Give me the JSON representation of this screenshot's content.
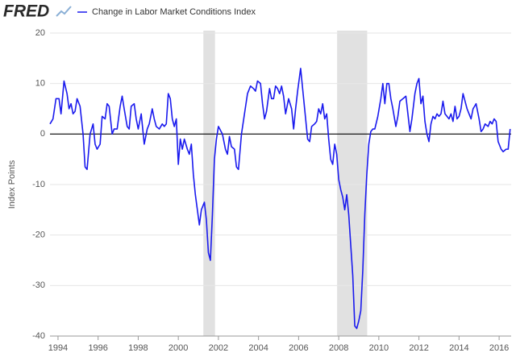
{
  "logo": "FRED",
  "chart_data": {
    "type": "line",
    "ylabel": "Index Points",
    "xlim": [
      1993.6,
      2016.6
    ],
    "xticks": [
      1994,
      1996,
      1998,
      2000,
      2002,
      2004,
      2006,
      2008,
      2010,
      2012,
      2014,
      2016
    ],
    "ylim": [
      -40,
      20
    ],
    "yticks": [
      -40,
      -30,
      -20,
      -10,
      0,
      10,
      20
    ],
    "grid": true,
    "zero_line": true,
    "shaded_regions": [
      [
        2001.25,
        2001.83
      ],
      [
        2007.92,
        2009.42
      ]
    ],
    "shade_color": "#e1e1e1",
    "series": [
      {
        "name": "Change in Labor Market Conditions Index",
        "color": "#1a1aee",
        "x": [
          1993.6,
          1993.75,
          1993.9,
          1994.05,
          1994.15,
          1994.3,
          1994.45,
          1994.55,
          1994.65,
          1994.75,
          1994.85,
          1994.95,
          1995.1,
          1995.25,
          1995.35,
          1995.45,
          1995.6,
          1995.75,
          1995.85,
          1995.95,
          1996.1,
          1996.2,
          1996.35,
          1996.45,
          1996.55,
          1996.7,
          1996.8,
          1996.95,
          1997.1,
          1997.2,
          1997.3,
          1997.45,
          1997.55,
          1997.65,
          1997.8,
          1997.9,
          1998.0,
          1998.15,
          1998.3,
          1998.45,
          1998.55,
          1998.7,
          1998.8,
          1998.9,
          1999.05,
          1999.2,
          1999.3,
          1999.4,
          1999.5,
          1999.6,
          1999.7,
          1999.8,
          1999.9,
          2000.0,
          2000.1,
          2000.2,
          2000.3,
          2000.45,
          2000.55,
          2000.65,
          2000.75,
          2000.85,
          2000.95,
          2001.05,
          2001.15,
          2001.3,
          2001.4,
          2001.5,
          2001.6,
          2001.7,
          2001.8,
          2001.9,
          2002.0,
          2002.2,
          2002.35,
          2002.45,
          2002.55,
          2002.65,
          2002.8,
          2002.9,
          2003.0,
          2003.15,
          2003.3,
          2003.45,
          2003.6,
          2003.75,
          2003.85,
          2003.95,
          2004.1,
          2004.2,
          2004.3,
          2004.4,
          2004.55,
          2004.65,
          2004.75,
          2004.85,
          2004.95,
          2005.05,
          2005.15,
          2005.25,
          2005.35,
          2005.5,
          2005.65,
          2005.75,
          2005.85,
          2005.95,
          2006.1,
          2006.2,
          2006.3,
          2006.45,
          2006.55,
          2006.65,
          2006.8,
          2006.9,
          2007.0,
          2007.1,
          2007.2,
          2007.3,
          2007.4,
          2007.5,
          2007.6,
          2007.7,
          2007.8,
          2007.9,
          2008.0,
          2008.1,
          2008.2,
          2008.3,
          2008.4,
          2008.5,
          2008.6,
          2008.7,
          2008.8,
          2008.9,
          2009.0,
          2009.1,
          2009.2,
          2009.3,
          2009.4,
          2009.5,
          2009.6,
          2009.7,
          2009.8,
          2009.95,
          2010.1,
          2010.2,
          2010.3,
          2010.4,
          2010.5,
          2010.6,
          2010.7,
          2010.85,
          2010.95,
          2011.05,
          2011.2,
          2011.35,
          2011.45,
          2011.55,
          2011.65,
          2011.8,
          2011.9,
          2012.0,
          2012.1,
          2012.2,
          2012.3,
          2012.4,
          2012.5,
          2012.6,
          2012.7,
          2012.8,
          2012.9,
          2013.0,
          2013.1,
          2013.2,
          2013.3,
          2013.4,
          2013.5,
          2013.6,
          2013.7,
          2013.8,
          2013.9,
          2014.0,
          2014.1,
          2014.2,
          2014.3,
          2014.4,
          2014.5,
          2014.6,
          2014.7,
          2014.85,
          2015.0,
          2015.1,
          2015.2,
          2015.3,
          2015.45,
          2015.55,
          2015.65,
          2015.75,
          2015.85,
          2015.95,
          2016.1,
          2016.2,
          2016.35,
          2016.45,
          2016.55
        ],
        "values": [
          2,
          3,
          7,
          7,
          4,
          10.5,
          8,
          5,
          6,
          4,
          4.5,
          7,
          5.5,
          0,
          -6.5,
          -7,
          0,
          2,
          -2,
          -3,
          -2,
          3.5,
          3,
          6,
          5.5,
          0,
          1,
          1,
          5.5,
          7.5,
          5,
          1.5,
          1,
          5.5,
          6,
          3,
          1,
          4,
          -2,
          1,
          2,
          5,
          3,
          1.5,
          1,
          2,
          1.5,
          2,
          8,
          7,
          3,
          1.5,
          3,
          -6,
          -1,
          -3,
          -1,
          -3,
          -4,
          -2,
          -8,
          -12,
          -15,
          -18,
          -15,
          -13.5,
          -17,
          -23.5,
          -25,
          -16,
          -5,
          -1,
          1.5,
          0,
          -3,
          -4,
          -0.5,
          -2.5,
          -3,
          -6.5,
          -7,
          0,
          4,
          8,
          9.5,
          9,
          8.5,
          10.5,
          10,
          6,
          3,
          4.5,
          9,
          7,
          7,
          9.5,
          9,
          8,
          9.5,
          7.5,
          4,
          7,
          5,
          1,
          5,
          8.5,
          13,
          9,
          5,
          -1,
          -1.5,
          1.5,
          2,
          2.5,
          5,
          4,
          6,
          3,
          4,
          -1,
          -5,
          -6,
          -2,
          -4,
          -9,
          -11,
          -12.5,
          -15,
          -12,
          -16,
          -22,
          -28,
          -38,
          -38.5,
          -37,
          -35,
          -27,
          -16,
          -8,
          -2,
          0.5,
          1,
          1,
          3.5,
          7,
          10,
          6,
          10,
          10,
          7,
          5,
          1.5,
          3.5,
          6.5,
          7,
          7.5,
          4,
          0.5,
          3,
          8,
          10,
          11,
          6,
          7.5,
          2.5,
          0,
          -1.5,
          2,
          3.5,
          3,
          4,
          3.5,
          4,
          6.5,
          4,
          3.5,
          3,
          4,
          2.5,
          5.5,
          3,
          3.5,
          5,
          8,
          6.5,
          5,
          4,
          3,
          5,
          6,
          3,
          0.5,
          1,
          2,
          1.5,
          2.5,
          2,
          3,
          2.5,
          -1.5,
          -3,
          -3.5,
          -3,
          -3,
          1
        ]
      }
    ]
  }
}
